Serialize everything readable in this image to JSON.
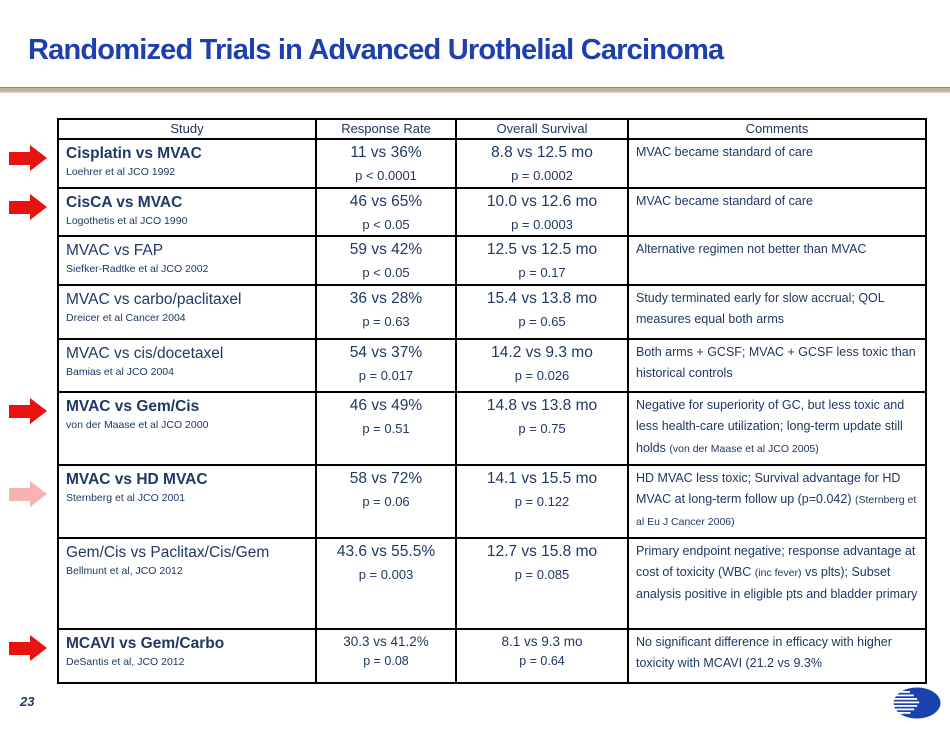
{
  "title": "Randomized Trials in Advanced Urothelial Carcinoma",
  "page_number": "23",
  "colors": {
    "title": "#1E3FAE",
    "text": "#1F3864",
    "arrow": "#E81210",
    "arrow_faded": "#F6B3B3",
    "rule": "#BDB49F",
    "logo": "#1A41AD"
  },
  "table": {
    "headers": [
      "Study",
      "Response Rate",
      "Overall Survival",
      "Comments"
    ],
    "rows": [
      {
        "study": "Cisplatin vs MVAC",
        "bold": true,
        "citation": "Loehrer et al JCO 1992",
        "response_rate": "11 vs 36%",
        "response_p": "p < 0.0001",
        "survival": "8.8 vs 12.5 mo",
        "survival_p": "p = 0.0002",
        "small_values": false,
        "comment_parts": [
          {
            "text": "MVAC became standard of care",
            "small": false
          }
        ]
      },
      {
        "study": "CisCA vs MVAC",
        "bold": true,
        "citation": "Logothetis et al JCO 1990",
        "response_rate": "46 vs 65%",
        "response_p": "p < 0.05",
        "survival": "10.0 vs 12.6 mo",
        "survival_p": "p = 0.0003",
        "small_values": false,
        "comment_parts": [
          {
            "text": "MVAC became standard of care",
            "small": false
          }
        ]
      },
      {
        "study": "MVAC vs FAP",
        "bold": false,
        "citation": "Siefker-Radtke et al JCO 2002",
        "response_rate": "59 vs 42%",
        "response_p": "p < 0.05",
        "survival": "12.5 vs 12.5 mo",
        "survival_p": "p = 0.17",
        "small_values": false,
        "comment_parts": [
          {
            "text": "Alternative regimen not better than MVAC",
            "small": false
          }
        ]
      },
      {
        "study": "MVAC vs carbo/paclitaxel",
        "bold": false,
        "citation": "Dreicer et al Cancer 2004",
        "response_rate": "36 vs 28%",
        "response_p": "p = 0.63",
        "survival": "15.4 vs 13.8 mo",
        "survival_p": "p = 0.65",
        "small_values": false,
        "comment_parts": [
          {
            "text": "Study terminated early for slow accrual; QOL measures equal both arms",
            "small": false
          }
        ]
      },
      {
        "study": "MVAC vs cis/docetaxel",
        "bold": false,
        "citation": "Bamias et al JCO 2004",
        "response_rate": "54 vs 37%",
        "response_p": "p = 0.017",
        "survival": "14.2 vs 9.3 mo",
        "survival_p": "p = 0.026",
        "small_values": false,
        "comment_parts": [
          {
            "text": "Both arms + GCSF; MVAC + GCSF less toxic than historical controls",
            "small": false
          }
        ]
      },
      {
        "study": "MVAC vs Gem/Cis",
        "bold": true,
        "citation": "von der Maase et al JCO 2000",
        "response_rate": "46 vs 49%",
        "response_p": "p = 0.51",
        "survival": "14.8 vs 13.8 mo",
        "survival_p": "p = 0.75",
        "small_values": false,
        "comment_parts": [
          {
            "text": "Negative for superiority of GC, but less toxic and less health-care utilization; long-term update still holds ",
            "small": false
          },
          {
            "text": "(von der Maase et al JCO 2005)",
            "small": true
          }
        ]
      },
      {
        "study": "MVAC vs HD MVAC",
        "bold": true,
        "citation": "Sternberg et al JCO 2001",
        "response_rate": "58 vs 72%",
        "response_p": "p = 0.06",
        "survival": "14.1 vs 15.5 mo",
        "survival_p": "p = 0.122",
        "small_values": false,
        "comment_parts": [
          {
            "text": "HD MVAC less toxic; Survival advantage for HD MVAC at long-term follow up (p=0.042) ",
            "small": false
          },
          {
            "text": "(Sternberg et al Eu J Cancer 2006)",
            "small": true
          }
        ]
      },
      {
        "study": "Gem/Cis vs Paclitax/Cis/Gem",
        "bold": false,
        "citation": "Bellmunt et al, JCO 2012",
        "response_rate": "43.6 vs 55.5%",
        "response_p": "p = 0.003",
        "survival": "12.7 vs 15.8 mo",
        "survival_p": "p = 0.085",
        "small_values": false,
        "comment_parts": [
          {
            "text": "Primary endpoint negative; response advantage at cost of toxicity (WBC ",
            "small": false
          },
          {
            "text": "(inc fever)",
            "small": true
          },
          {
            "text": " vs plts); Subset analysis positive in eligible pts and bladder primary",
            "small": false
          }
        ]
      },
      {
        "study": "MCAVI vs Gem/Carbo",
        "bold": true,
        "citation": "DeSantis et al, JCO 2012",
        "response_rate": "30.3 vs 41.2%",
        "response_p": "p = 0.08",
        "survival": "8.1 vs 9.3 mo",
        "survival_p": "p = 0.64",
        "small_values": true,
        "comment_parts": [
          {
            "text": "No significant difference in efficacy with higher toxicity with MCAVI (21.2 vs 9.3%",
            "small": false
          }
        ]
      }
    ]
  },
  "arrows": [
    {
      "row": 0,
      "style": "solid"
    },
    {
      "row": 1,
      "style": "solid"
    },
    {
      "row": 5,
      "style": "solid"
    },
    {
      "row": 6,
      "style": "faded"
    },
    {
      "row": 8,
      "style": "solid"
    }
  ]
}
